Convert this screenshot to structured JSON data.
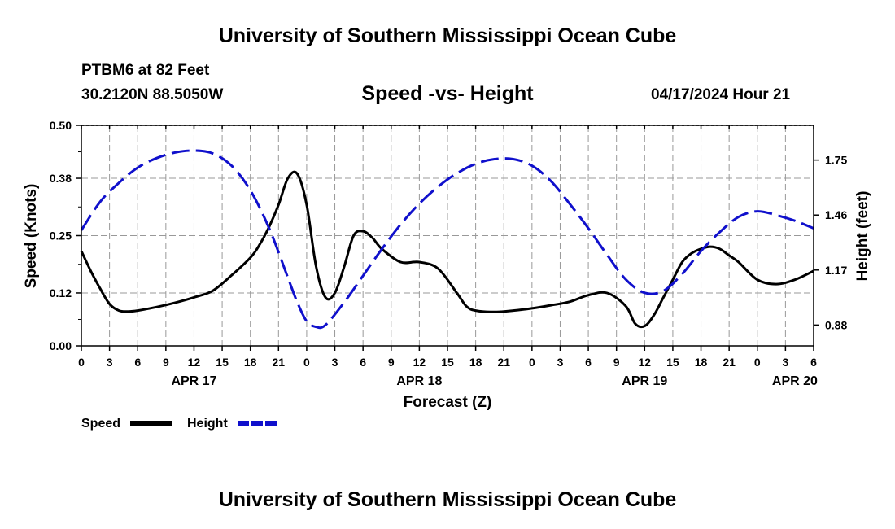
{
  "page": {
    "title_top": "University of Southern Mississippi Ocean Cube",
    "title_bottom": "University of Southern Mississippi Ocean Cube",
    "station": "PTBM6 at 82 Feet",
    "coords": "30.2120N  88.5050W",
    "subtitle": "Speed -vs- Height",
    "datetime": "04/17/2024 Hour 21"
  },
  "colors": {
    "speed": "#000000",
    "height": "#1010cc",
    "grid": "#999999"
  },
  "chart_data": {
    "type": "line",
    "title": "Speed -vs- Height",
    "xlabel": "Forecast (Z)",
    "ylabel": "Speed (Knots)",
    "ylabel_right": "Height (feet)",
    "x_unit": "hours from 04/17 00Z",
    "xlim": [
      0,
      78
    ],
    "ylim": [
      0,
      0.5
    ],
    "ylim_right": [
      0.77,
      1.933
    ],
    "x_ticks": [
      0,
      3,
      6,
      9,
      12,
      15,
      18,
      21,
      24,
      27,
      30,
      33,
      36,
      39,
      42,
      45,
      48,
      51,
      54,
      57,
      60,
      63,
      66,
      69,
      72,
      75,
      78
    ],
    "x_tick_labels": [
      "0",
      "3",
      "6",
      "9",
      "12",
      "15",
      "18",
      "21",
      "0",
      "3",
      "6",
      "9",
      "12",
      "15",
      "18",
      "21",
      "0",
      "3",
      "6",
      "9",
      "12",
      "15",
      "18",
      "21",
      "0",
      "3",
      "6"
    ],
    "date_labels": [
      {
        "x": 12,
        "label": "APR 17"
      },
      {
        "x": 36,
        "label": "APR 18"
      },
      {
        "x": 60,
        "label": "APR 19"
      },
      {
        "x": 76,
        "label": "APR 20"
      }
    ],
    "y_ticks": [
      0.0,
      0.12,
      0.25,
      0.38,
      0.5
    ],
    "y_tick_labels": [
      "0.00",
      "0.12",
      "0.25",
      "0.38",
      "0.50"
    ],
    "y_ticks_right": [
      0.88,
      1.17,
      1.46,
      1.75
    ],
    "y_tick_labels_right": [
      "0.88",
      "1.17",
      "1.46",
      "1.75"
    ],
    "grid": true,
    "legend": [
      {
        "name": "Speed",
        "style": "solid"
      },
      {
        "name": "Height",
        "style": "dashed"
      }
    ],
    "series": [
      {
        "name": "Speed",
        "axis": "left",
        "style": "solid",
        "x": [
          0,
          1,
          2,
          3,
          4,
          5,
          6,
          8,
          10,
          12,
          14,
          16,
          18,
          19,
          20,
          21,
          22,
          23,
          24,
          25,
          26,
          27,
          28,
          29,
          30,
          31,
          32,
          34,
          36,
          38,
          40,
          41,
          42,
          44,
          46,
          48,
          50,
          52,
          54,
          56,
          58,
          59,
          60,
          61,
          62,
          63,
          64,
          65,
          66,
          67,
          68,
          69,
          70,
          72,
          74,
          76,
          78
        ],
        "values": [
          0.215,
          0.17,
          0.13,
          0.095,
          0.08,
          0.078,
          0.08,
          0.088,
          0.098,
          0.11,
          0.125,
          0.16,
          0.2,
          0.23,
          0.27,
          0.32,
          0.38,
          0.39,
          0.32,
          0.18,
          0.11,
          0.12,
          0.18,
          0.25,
          0.26,
          0.245,
          0.22,
          0.19,
          0.19,
          0.175,
          0.12,
          0.09,
          0.08,
          0.077,
          0.08,
          0.085,
          0.092,
          0.1,
          0.115,
          0.12,
          0.09,
          0.05,
          0.045,
          0.07,
          0.11,
          0.15,
          0.19,
          0.21,
          0.22,
          0.225,
          0.22,
          0.205,
          0.19,
          0.15,
          0.14,
          0.15,
          0.17
        ]
      },
      {
        "name": "Height",
        "axis": "right",
        "style": "dashed",
        "x": [
          0,
          2,
          4,
          6,
          8,
          10,
          12,
          14,
          16,
          18,
          20,
          22,
          23,
          24,
          25,
          26,
          28,
          30,
          32,
          34,
          36,
          38,
          40,
          42,
          44,
          46,
          48,
          50,
          52,
          54,
          56,
          58,
          60,
          62,
          64,
          66,
          68,
          70,
          72,
          74,
          76,
          78
        ],
        "values": [
          1.38,
          1.53,
          1.63,
          1.71,
          1.76,
          1.79,
          1.8,
          1.785,
          1.72,
          1.59,
          1.39,
          1.13,
          1.0,
          0.9,
          0.87,
          0.88,
          1.0,
          1.14,
          1.28,
          1.41,
          1.52,
          1.61,
          1.68,
          1.73,
          1.755,
          1.755,
          1.72,
          1.64,
          1.52,
          1.39,
          1.25,
          1.12,
          1.05,
          1.06,
          1.15,
          1.27,
          1.37,
          1.45,
          1.48,
          1.46,
          1.43,
          1.39
        ]
      }
    ]
  }
}
